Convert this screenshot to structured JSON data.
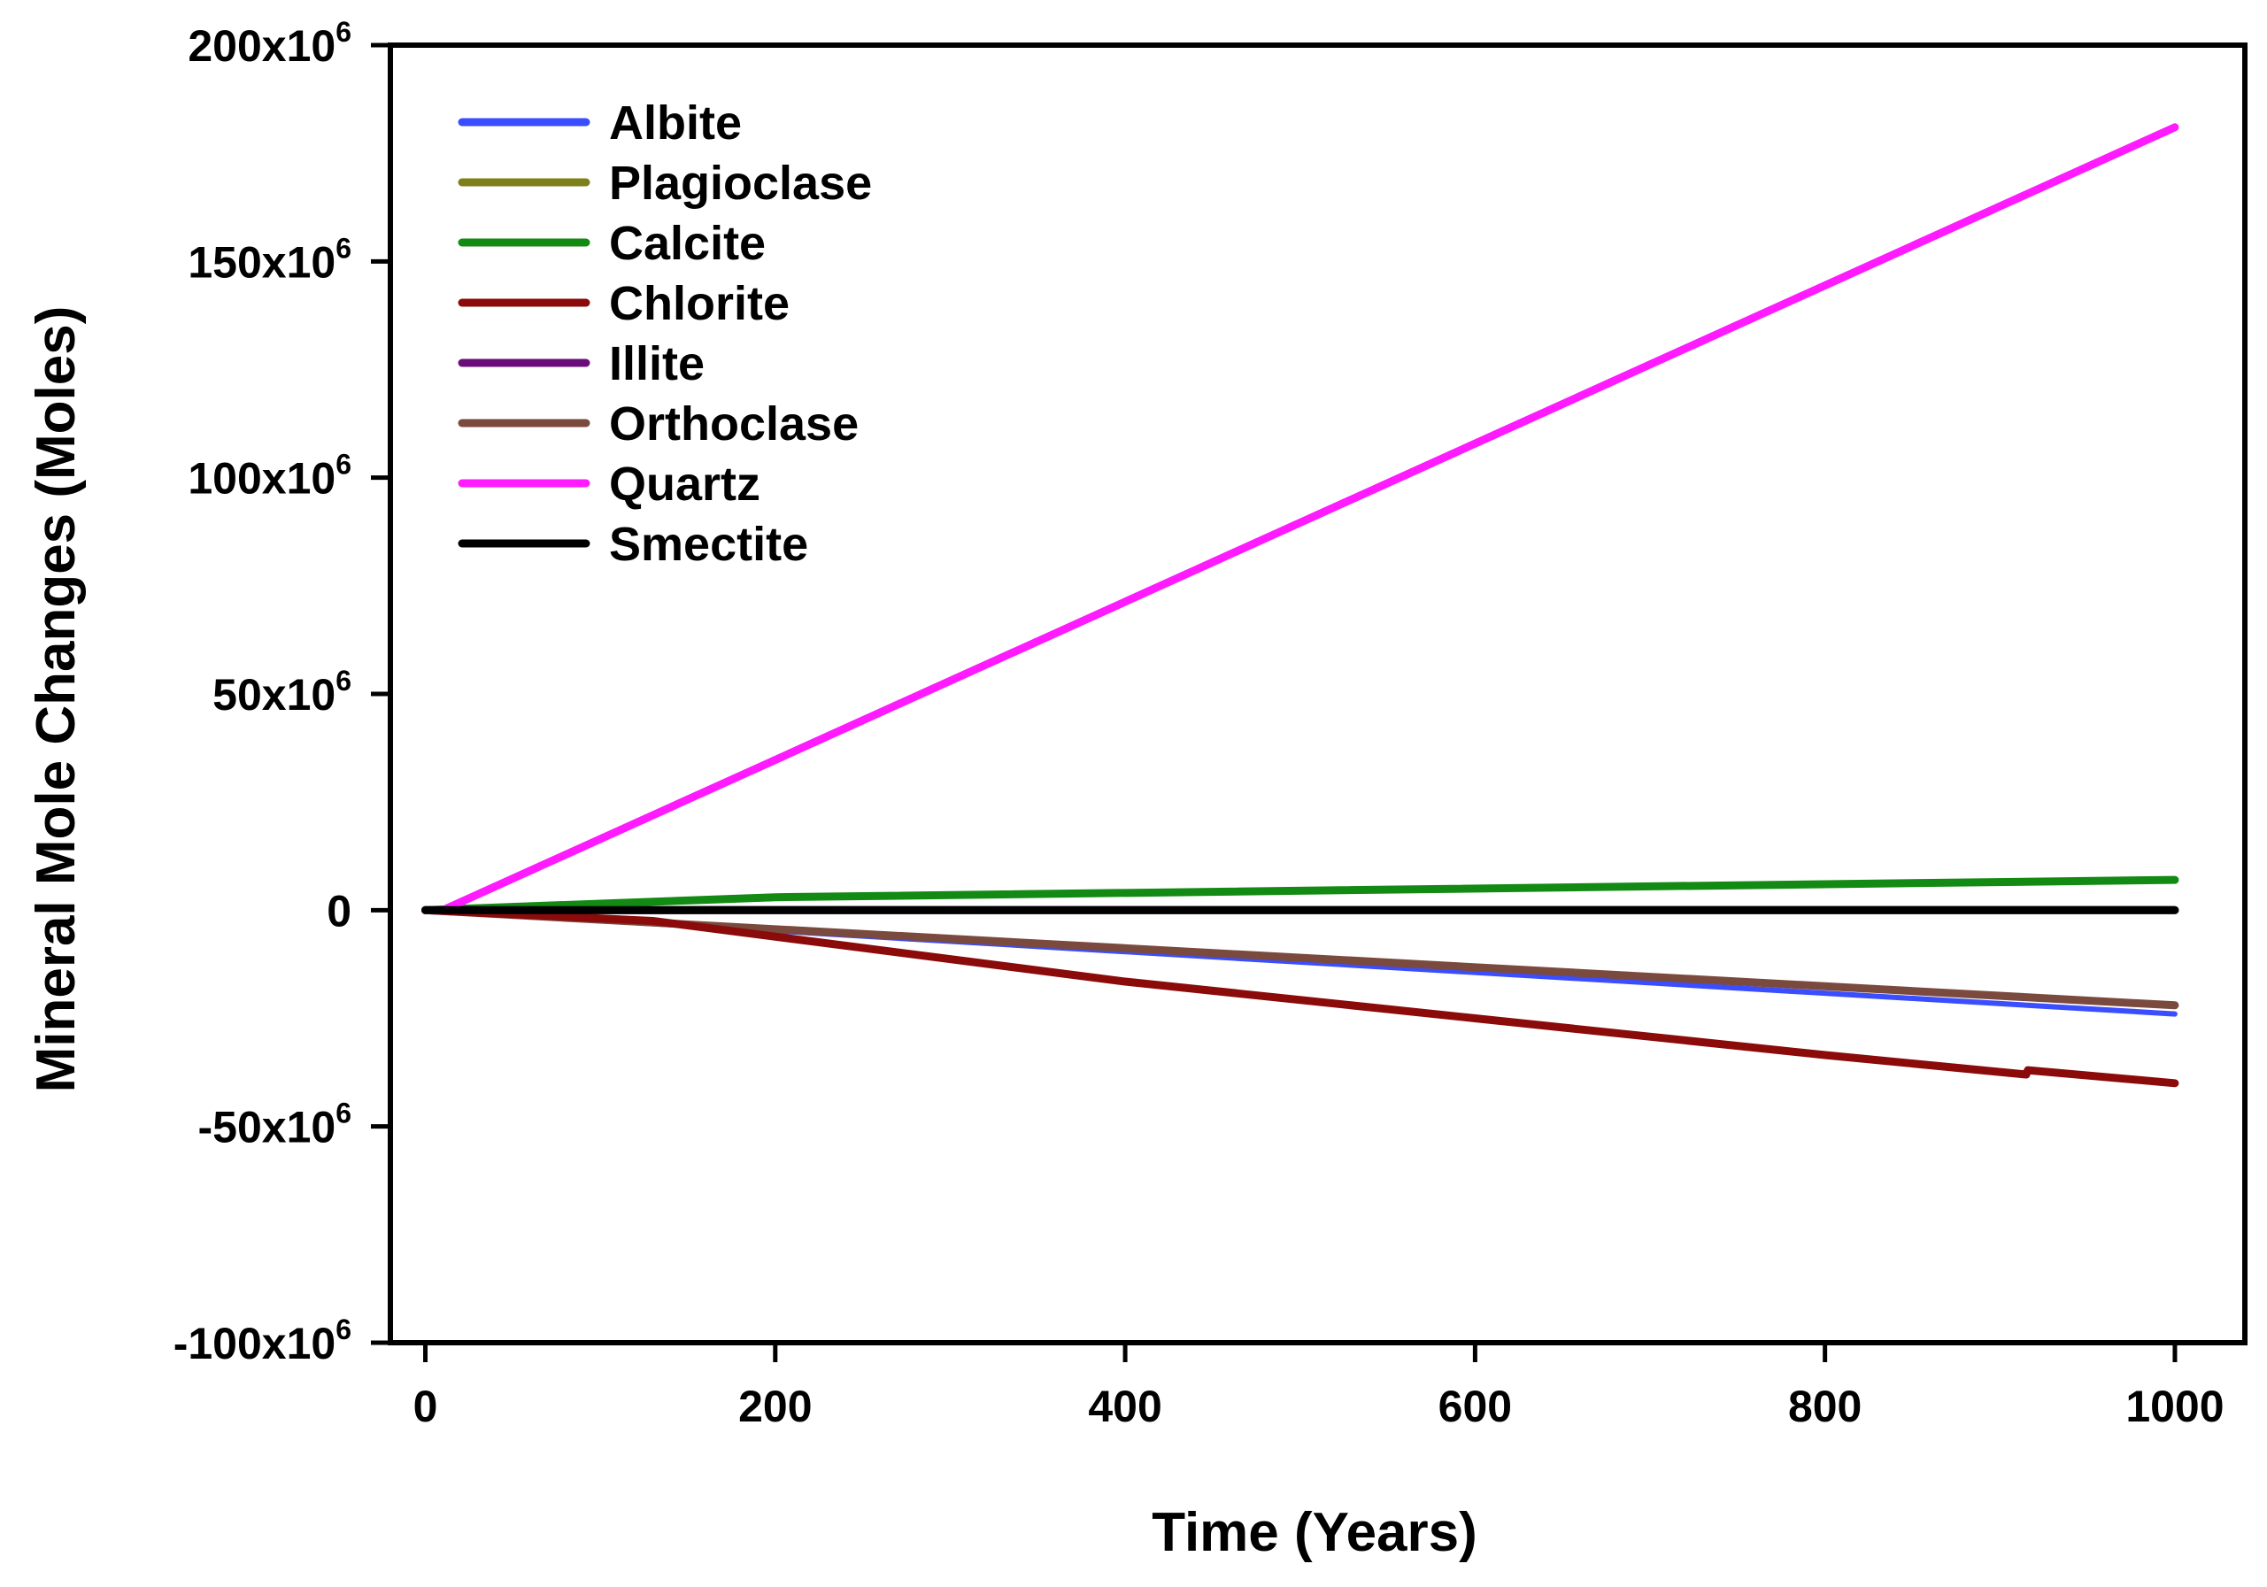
{
  "chart_data": {
    "type": "line",
    "title": "",
    "xlabel": "Time (Years)",
    "ylabel": "Mineral Mole Changes (Moles)",
    "xlim": [
      -20,
      1040
    ],
    "ylim": [
      -100000000,
      200000000
    ],
    "xticks": [
      {
        "value": 0,
        "label": "0"
      },
      {
        "value": 200,
        "label": "200"
      },
      {
        "value": 400,
        "label": "400"
      },
      {
        "value": 600,
        "label": "600"
      },
      {
        "value": 800,
        "label": "800"
      },
      {
        "value": 1000,
        "label": "1000"
      }
    ],
    "yticks": [
      {
        "value": 200000000,
        "base": "200x10",
        "exp": "6"
      },
      {
        "value": 150000000,
        "base": "150x10",
        "exp": "6"
      },
      {
        "value": 100000000,
        "base": "100x10",
        "exp": "6"
      },
      {
        "value": 50000000,
        "base": "50x10",
        "exp": "6"
      },
      {
        "value": 0,
        "base": "0",
        "exp": ""
      },
      {
        "value": -50000000,
        "base": "-50x10",
        "exp": "6"
      },
      {
        "value": -100000000,
        "base": "-100x10",
        "exp": "6"
      }
    ],
    "grid": false,
    "legend_position": "top-left",
    "series": [
      {
        "name": "Albite",
        "color": "#3a4dff",
        "x": [
          0,
          1000
        ],
        "y": [
          0,
          -24000000
        ]
      },
      {
        "name": "Plagioclase",
        "color": "#7f7f1a",
        "x": [
          0,
          1000
        ],
        "y": [
          0,
          0
        ]
      },
      {
        "name": "Calcite",
        "color": "#138a13",
        "x": [
          0,
          200,
          1000
        ],
        "y": [
          0,
          3000000,
          7000000
        ]
      },
      {
        "name": "Chlorite",
        "color": "#8b0a0a",
        "x": [
          0,
          130,
          400,
          600,
          800,
          915,
          916,
          1000
        ],
        "y": [
          0,
          -2500000,
          -16500000,
          -25000000,
          -33500000,
          -38000000,
          -37000000,
          -40000000
        ]
      },
      {
        "name": "Illite",
        "color": "#6a0d7a",
        "x": [
          0,
          1000
        ],
        "y": [
          0,
          0
        ]
      },
      {
        "name": "Orthoclase",
        "color": "#7a4a3e",
        "x": [
          0,
          1000
        ],
        "y": [
          0,
          -22000000
        ]
      },
      {
        "name": "Quartz",
        "color": "#ff1aff",
        "x": [
          0,
          10,
          1000
        ],
        "y": [
          0,
          0,
          181000000
        ]
      },
      {
        "name": "Smectite",
        "color": "#000000",
        "x": [
          0,
          1000
        ],
        "y": [
          0,
          0
        ]
      }
    ]
  }
}
